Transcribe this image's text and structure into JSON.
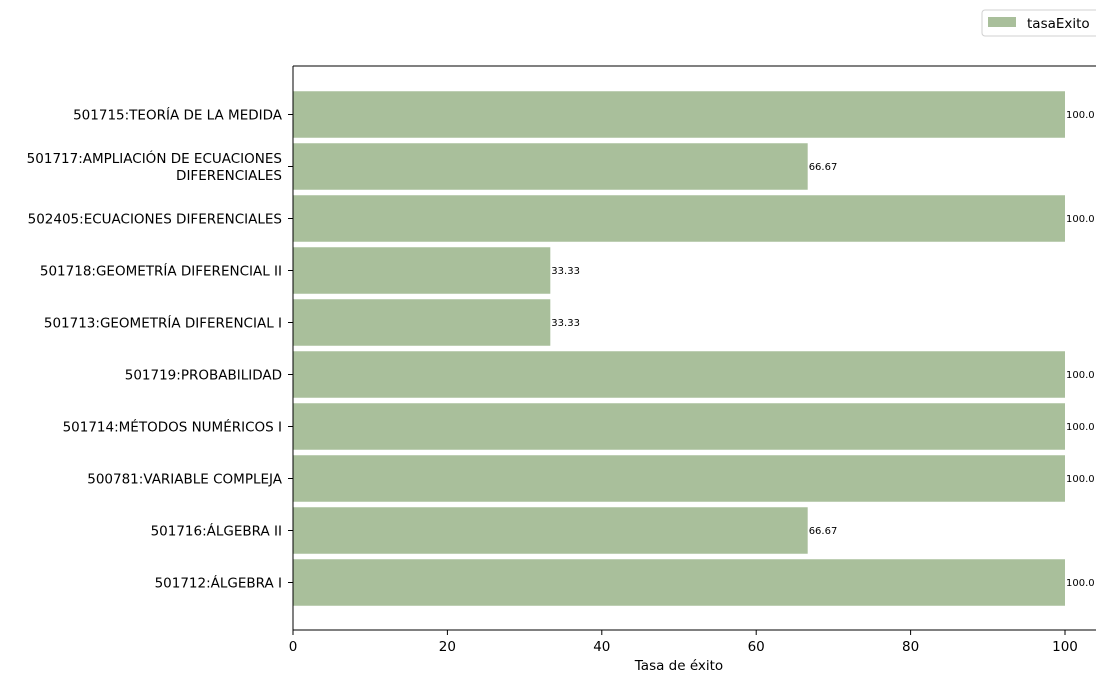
{
  "chart_data": {
    "type": "bar",
    "orientation": "horizontal",
    "categories": [
      "501715:TEORÍA DE LA MEDIDA",
      "501717:AMPLIACIÓN DE ECUACIONES\nDIFERENCIALES",
      "502405:ECUACIONES DIFERENCIALES",
      "501718:GEOMETRÍA DIFERENCIAL II",
      "501713:GEOMETRÍA DIFERENCIAL I",
      "501719:PROBABILIDAD",
      "501714:MÉTODOS NUMÉRICOS I",
      "500781:VARIABLE COMPLEJA",
      "501716:ÁLGEBRA II",
      "501712:ÁLGEBRA I"
    ],
    "series": [
      {
        "name": "tasaExito",
        "values": [
          100.0,
          66.67,
          100.0,
          33.33,
          33.33,
          100.0,
          100.0,
          100.0,
          66.67,
          100.0
        ],
        "labels": [
          "100.0",
          "66.67",
          "100.0",
          "33.33",
          "33.33",
          "100.0",
          "100.0",
          "100.0",
          "66.67",
          "100.0"
        ],
        "color": "#a9bf9b"
      }
    ],
    "xlabel": "Tasa de éxito",
    "ylabel": "",
    "title": "",
    "xlim": [
      0,
      100
    ],
    "xticks": [
      0,
      20,
      40,
      60,
      80,
      100
    ],
    "grid": false,
    "legend_position": "top-right"
  }
}
